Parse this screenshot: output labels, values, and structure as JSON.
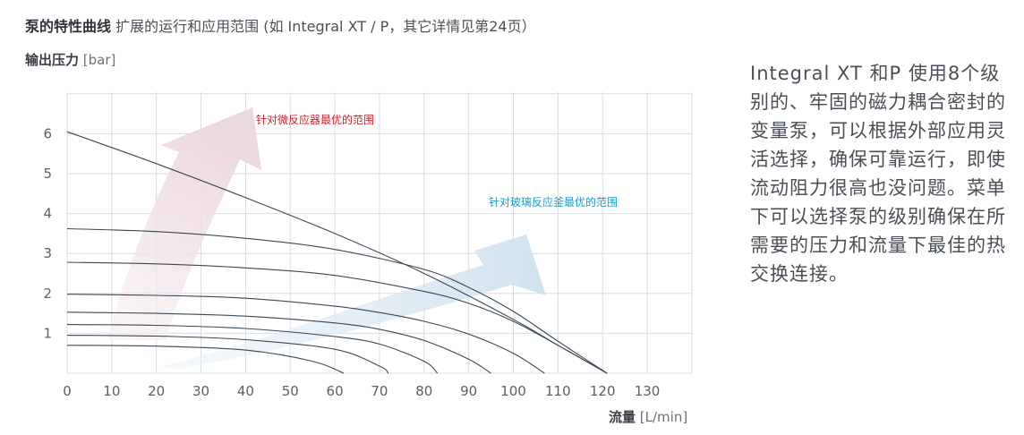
{
  "heading": {
    "bold": "泵的特性曲线",
    "rest": "扩展的运行和应用范围 (如 Integral XT / P，其它详情见第24页）"
  },
  "description": "Integral XT 和P 使用8个级别的、牢固的磁力耦合密封的变量泵，可以根据外部应用灵活选择，确保可靠运行，即使流动阻力很高也没问题。菜单下可以选择泵的级别确保在所需要的压力和流量下最佳的热交换连接。",
  "colors": {
    "curve": "#3b4755",
    "grid": "#d9dde2",
    "red_arrow": "#efdfe5",
    "blue_arrow": "#d6e6f1",
    "red_text": "#d0202a",
    "blue_text": "#1a9bd0"
  },
  "chart_data": {
    "type": "line",
    "ylabel": {
      "bold": "输出压力",
      "unit": "[bar]"
    },
    "xlabel": {
      "bold": "流量",
      "unit": "[L/min]"
    },
    "xlim": [
      0,
      140
    ],
    "ylim": [
      0,
      7
    ],
    "x_ticks": [
      "0",
      "10",
      "20",
      "30",
      "40",
      "50",
      "60",
      "70",
      "80",
      "90",
      "100",
      "110",
      "120",
      "130"
    ],
    "y_ticks": [
      "1",
      "2",
      "3",
      "4",
      "5",
      "6"
    ],
    "grid": true,
    "annotations": [
      {
        "text": "针对微反应器最优的范围",
        "color": "red"
      },
      {
        "text": "针对玻璃反应釜最优的范围",
        "color": "blue"
      }
    ],
    "series": [
      {
        "x": [
          0,
          20,
          40,
          60,
          80,
          100,
          110,
          121
        ],
        "y": [
          6.05,
          5.25,
          4.4,
          3.5,
          2.5,
          1.35,
          0.7,
          0.0
        ]
      },
      {
        "x": [
          0,
          20,
          40,
          60,
          80,
          90,
          100,
          110,
          121
        ],
        "y": [
          3.62,
          3.55,
          3.38,
          3.1,
          2.6,
          2.15,
          1.55,
          0.8,
          0.0
        ]
      },
      {
        "x": [
          0,
          20,
          40,
          60,
          80,
          90,
          100,
          110,
          121
        ],
        "y": [
          2.78,
          2.74,
          2.64,
          2.45,
          2.05,
          1.75,
          1.3,
          0.7,
          0.0
        ]
      },
      {
        "x": [
          0,
          20,
          40,
          60,
          70,
          80,
          90,
          100,
          107
        ],
        "y": [
          1.98,
          1.95,
          1.88,
          1.68,
          1.52,
          1.3,
          0.98,
          0.5,
          0.0
        ]
      },
      {
        "x": [
          0,
          20,
          40,
          60,
          70,
          80,
          90,
          95
        ],
        "y": [
          1.53,
          1.5,
          1.43,
          1.26,
          1.1,
          0.82,
          0.35,
          0.0
        ]
      },
      {
        "x": [
          0,
          20,
          40,
          60,
          70,
          80,
          83
        ],
        "y": [
          1.22,
          1.2,
          1.12,
          0.92,
          0.73,
          0.3,
          0.0
        ]
      },
      {
        "x": [
          0,
          20,
          40,
          60,
          70,
          72
        ],
        "y": [
          0.95,
          0.93,
          0.84,
          0.6,
          0.18,
          0.0
        ]
      },
      {
        "x": [
          0,
          20,
          40,
          55,
          62
        ],
        "y": [
          0.7,
          0.68,
          0.58,
          0.3,
          0.0
        ]
      }
    ]
  }
}
